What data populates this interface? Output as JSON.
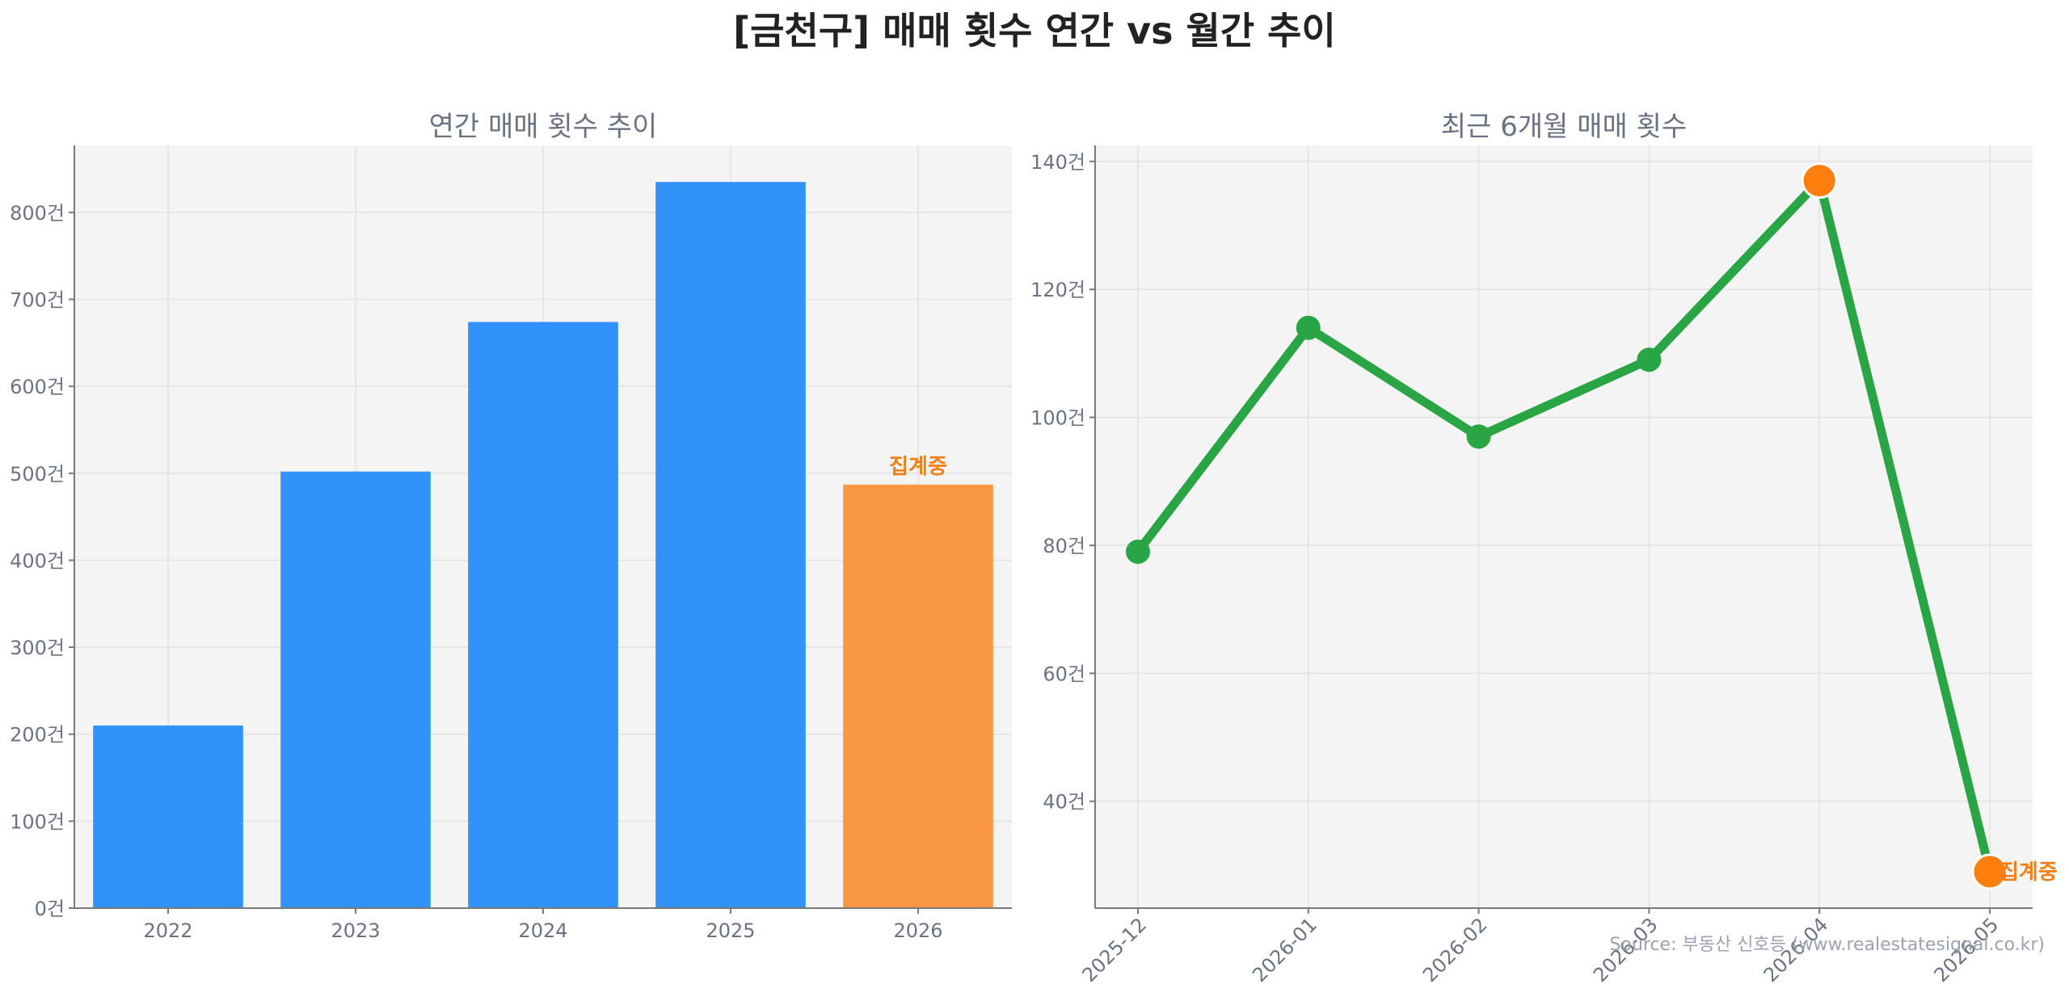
{
  "page_title": "[금천구] 매매 횟수 연간 vs 월간 추이",
  "source": "Source: 부동산 신호등 (www.realestatesignal.co.kr)",
  "colors": {
    "bar": "#3192fa",
    "bar_partial": "#f89641",
    "line": "#2aa546",
    "highlight": "#ff7f0e",
    "plot_bg": "#f4f4f4",
    "note": "#f57f17"
  },
  "chart_data": [
    {
      "type": "bar",
      "title": "연간 매매 횟수 추이",
      "categories": [
        "2022",
        "2023",
        "2024",
        "2025",
        "2026"
      ],
      "values": [
        210,
        502,
        674,
        835,
        487
      ],
      "partial_index": 4,
      "partial_label": "집계중",
      "yticks": [
        0,
        100,
        200,
        300,
        400,
        500,
        600,
        700,
        800
      ],
      "ytick_labels": [
        "0건",
        "100건",
        "200건",
        "300건",
        "400건",
        "500건",
        "600건",
        "700건",
        "800건"
      ],
      "ylim": [
        0,
        877
      ],
      "grid": true
    },
    {
      "type": "line",
      "title": "최근 6개월 매매 횟수",
      "categories": [
        "2025-12",
        "2026-01",
        "2026-02",
        "2026-03",
        "2026-04",
        "2026-05"
      ],
      "values": [
        79,
        114,
        97,
        109,
        137,
        29
      ],
      "highlight_indices": [
        4,
        5
      ],
      "partial_index": 5,
      "partial_label": "집계중",
      "yticks": [
        40,
        60,
        80,
        100,
        120,
        140
      ],
      "ytick_labels": [
        "40건",
        "60건",
        "80건",
        "100건",
        "120건",
        "140건"
      ],
      "ylim": [
        23.3,
        142.5
      ],
      "grid": true
    }
  ]
}
